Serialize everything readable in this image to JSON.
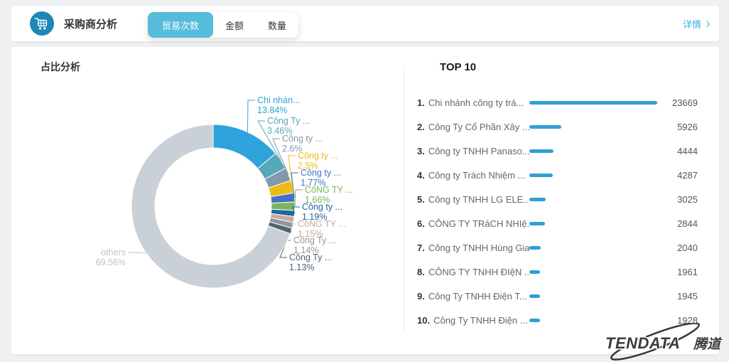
{
  "header": {
    "title": "采购商分析",
    "tabs": [
      {
        "label": "贸易次数",
        "active": true
      },
      {
        "label": "金额",
        "active": false
      },
      {
        "label": "数量",
        "active": false
      }
    ],
    "details_label": "详情"
  },
  "left_panel": {
    "title": "占比分析"
  },
  "right_panel": {
    "title": "TOP 10"
  },
  "chart_data": {
    "type": "pie",
    "title": "占比分析",
    "donut": true,
    "legend_position": "none",
    "slices": [
      {
        "name": "Chi nhán...",
        "pct": "13.84%",
        "value": 13.84,
        "color": "#2fa3dc"
      },
      {
        "name": "Công Ty ...",
        "pct": "3.46%",
        "value": 3.46,
        "color": "#55a8b5"
      },
      {
        "name": "Công ty ...",
        "pct": "2.6%",
        "value": 2.6,
        "color": "#8099ab"
      },
      {
        "name": "Công ty ...",
        "pct": "2.5%",
        "value": 2.5,
        "color": "#ecbc15"
      },
      {
        "name": "Công ty ...",
        "pct": "1.77%",
        "value": 1.77,
        "color": "#4272c8"
      },
      {
        "name": "CôNG TY ...",
        "pct": "1.66%",
        "value": 1.66,
        "color": "#7ab55c"
      },
      {
        "name": "Công ty ...",
        "pct": "1.19%",
        "value": 1.19,
        "color": "#1f66a5"
      },
      {
        "name": "CôNG TY ...",
        "pct": "1.15%",
        "value": 1.15,
        "color": "#c7aba0"
      },
      {
        "name": "Công Ty ...",
        "pct": "1.14%",
        "value": 1.14,
        "color": "#8f979d"
      },
      {
        "name": "Công Ty ...",
        "pct": "1.13%",
        "value": 1.13,
        "color": "#51646f"
      },
      {
        "name": "others",
        "pct": "69.56%",
        "value": 69.56,
        "color": "#c9d0d8",
        "label_color": "#b9c3cf"
      }
    ]
  },
  "top10": {
    "title": "TOP 10",
    "bar_color": "#2f9fd4",
    "max_value": 23669,
    "items": [
      {
        "rank": "1.",
        "name": "Chi nhánh công ty trá...",
        "value": 23669
      },
      {
        "rank": "2.",
        "name": "Công Ty Cổ Phần Xây ...",
        "value": 5926
      },
      {
        "rank": "3.",
        "name": "Công ty TNHH Panaso...",
        "value": 4444
      },
      {
        "rank": "4.",
        "name": "Công ty Trách Nhiệm ...",
        "value": 4287
      },
      {
        "rank": "5.",
        "name": "Công ty TNHH LG ELE...",
        "value": 3025
      },
      {
        "rank": "6.",
        "name": "CÔNG TY TRáCH NHIệ...",
        "value": 2844
      },
      {
        "rank": "7.",
        "name": "Công ty TNHH Hùng Gia",
        "value": 2040
      },
      {
        "rank": "8.",
        "name": "CÔNG TY TNHH ĐIệN ...",
        "value": 1961
      },
      {
        "rank": "9.",
        "name": "Công Ty TNHH Điện T...",
        "value": 1945
      },
      {
        "rank": "10.",
        "name": "Công Ty TNHH Điện ...",
        "value": 1928
      }
    ]
  },
  "watermark": {
    "text": "TENDATA",
    "cn": "腾道"
  }
}
